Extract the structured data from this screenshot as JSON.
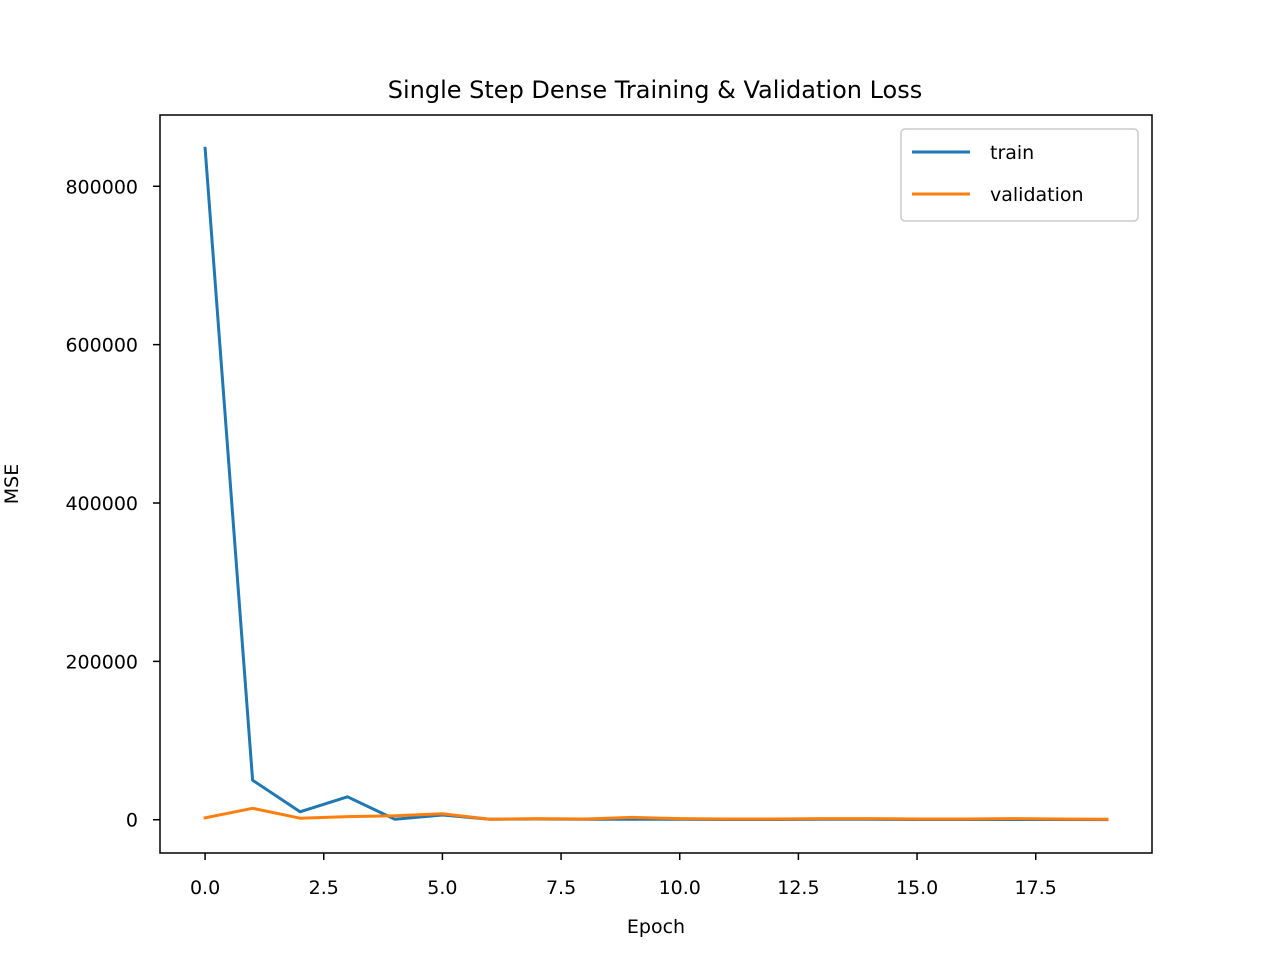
{
  "chart_data": {
    "type": "line",
    "title": "Single Step Dense Training & Validation Loss",
    "xlabel": "Epoch",
    "ylabel": "MSE",
    "xlim": [
      -0.95,
      19.95
    ],
    "ylim": [
      -42000,
      890000
    ],
    "x_ticks": [
      0.0,
      2.5,
      5.0,
      7.5,
      10.0,
      12.5,
      15.0,
      17.5
    ],
    "x_tick_labels": [
      "0.0",
      "2.5",
      "5.0",
      "7.5",
      "10.0",
      "12.5",
      "15.0",
      "17.5"
    ],
    "y_ticks": [
      0,
      200000,
      400000,
      600000,
      800000
    ],
    "y_tick_labels": [
      "0",
      "200000",
      "400000",
      "600000",
      "800000"
    ],
    "grid": false,
    "legend_position": "top-right",
    "x": [
      0,
      1,
      2,
      3,
      4,
      5,
      6,
      7,
      8,
      9,
      10,
      11,
      12,
      13,
      14,
      15,
      16,
      17,
      18,
      19
    ],
    "series": [
      {
        "name": "train",
        "color": "#1f77b4",
        "values": [
          848000,
          50000,
          10000,
          29000,
          500,
          6000,
          500,
          1000,
          500,
          500,
          500,
          300,
          300,
          500,
          500,
          300,
          300,
          300,
          300,
          200
        ]
      },
      {
        "name": "validation",
        "color": "#ff7f0e",
        "values": [
          2500,
          14500,
          2000,
          4000,
          5000,
          7500,
          500,
          1500,
          1000,
          3000,
          1500,
          1000,
          1000,
          1500,
          1500,
          1000,
          1000,
          1500,
          1000,
          500
        ]
      }
    ]
  }
}
